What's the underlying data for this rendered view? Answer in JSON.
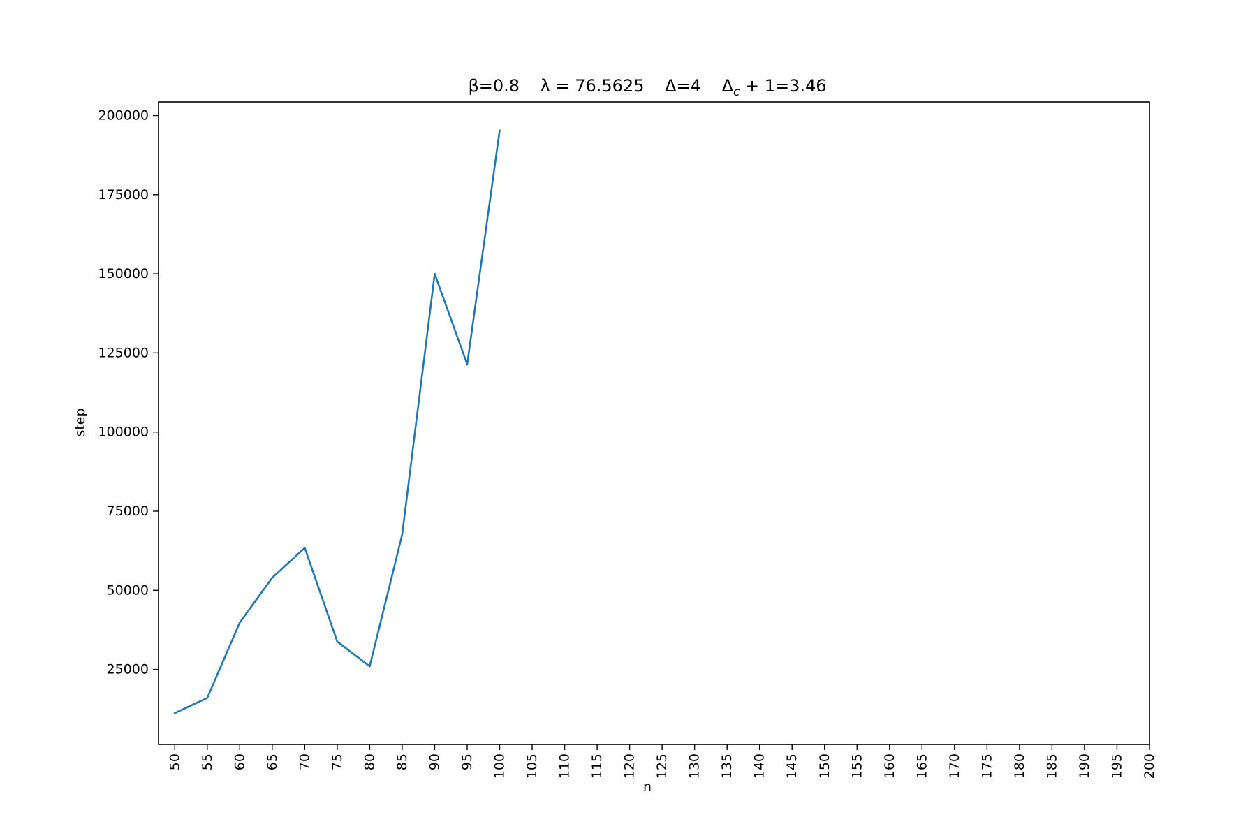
{
  "chart_data": {
    "type": "line",
    "title": {
      "beta": "β=0.8",
      "lambda": "λ = 76.5625",
      "delta": "Δ=4",
      "delta_c_symbol": "Δ",
      "delta_c_subscript": "c",
      "delta_c_rest": " + 1=3.46"
    },
    "xlabel": "n",
    "ylabel": "step",
    "xlim": [
      47.5,
      200
    ],
    "ylim": [
      1300,
      204300
    ],
    "x_ticks": [
      50,
      55,
      60,
      65,
      70,
      75,
      80,
      85,
      90,
      95,
      100,
      105,
      110,
      115,
      120,
      125,
      130,
      135,
      140,
      145,
      150,
      155,
      160,
      165,
      170,
      175,
      180,
      185,
      190,
      195,
      200
    ],
    "y_ticks": [
      25000,
      50000,
      75000,
      100000,
      125000,
      150000,
      175000,
      200000
    ],
    "grid": false,
    "series": [
      {
        "color": "#1f77b4",
        "x": [
          50,
          55,
          60,
          65,
          70,
          75,
          80,
          85,
          90,
          95,
          100
        ],
        "y": [
          11200,
          16000,
          39800,
          54000,
          63400,
          33800,
          26000,
          67600,
          150000,
          121400,
          195300
        ]
      }
    ]
  }
}
